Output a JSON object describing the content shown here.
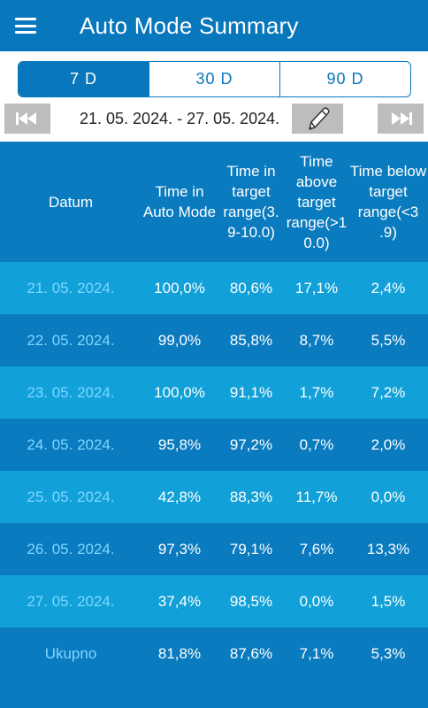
{
  "appbar": {
    "title": "Auto Mode Summary",
    "menu_icon": "hamburger-menu-icon"
  },
  "tabs": [
    {
      "label": "7 D",
      "active": true
    },
    {
      "label": "30 D",
      "active": false
    },
    {
      "label": "90 D",
      "active": false
    }
  ],
  "date_nav": {
    "range": "21. 05. 2024. - 27. 05. 2024.",
    "first_icon": "skip-first-icon",
    "edit_icon": "pencil-icon",
    "last_icon": "skip-last-icon"
  },
  "table": {
    "headers": [
      "Datum",
      "Time in Auto Mode",
      "Time in target range(3. 9-10.0)",
      "Time above target range(>1 0.0)",
      "Time below target range(<3 .9)"
    ],
    "rows": [
      {
        "date": "21. 05. 2024.",
        "auto": "100,0%",
        "in_range": "80,6%",
        "above": "17,1%",
        "below": "2,4%"
      },
      {
        "date": "22. 05. 2024.",
        "auto": "99,0%",
        "in_range": "85,8%",
        "above": "8,7%",
        "below": "5,5%"
      },
      {
        "date": "23. 05. 2024.",
        "auto": "100,0%",
        "in_range": "91,1%",
        "above": "1,7%",
        "below": "7,2%"
      },
      {
        "date": "24. 05. 2024.",
        "auto": "95,8%",
        "in_range": "97,2%",
        "above": "0,7%",
        "below": "2,0%"
      },
      {
        "date": "25. 05. 2024.",
        "auto": "42,8%",
        "in_range": "88,3%",
        "above": "11,7%",
        "below": "0,0%"
      },
      {
        "date": "26. 05. 2024.",
        "auto": "97,3%",
        "in_range": "79,1%",
        "above": "7,6%",
        "below": "13,3%"
      },
      {
        "date": "27. 05. 2024.",
        "auto": "37,4%",
        "in_range": "98,5%",
        "above": "0,0%",
        "below": "1,5%"
      }
    ],
    "total": {
      "label": "Ukupno",
      "auto": "81,8%",
      "in_range": "87,6%",
      "above": "7,1%",
      "below": "5,3%"
    }
  },
  "colors": {
    "primary": "#0877bb",
    "row_light": "#11a1d8",
    "row_dark": "#0a7bbf",
    "date_text": "#7fd6ff"
  }
}
